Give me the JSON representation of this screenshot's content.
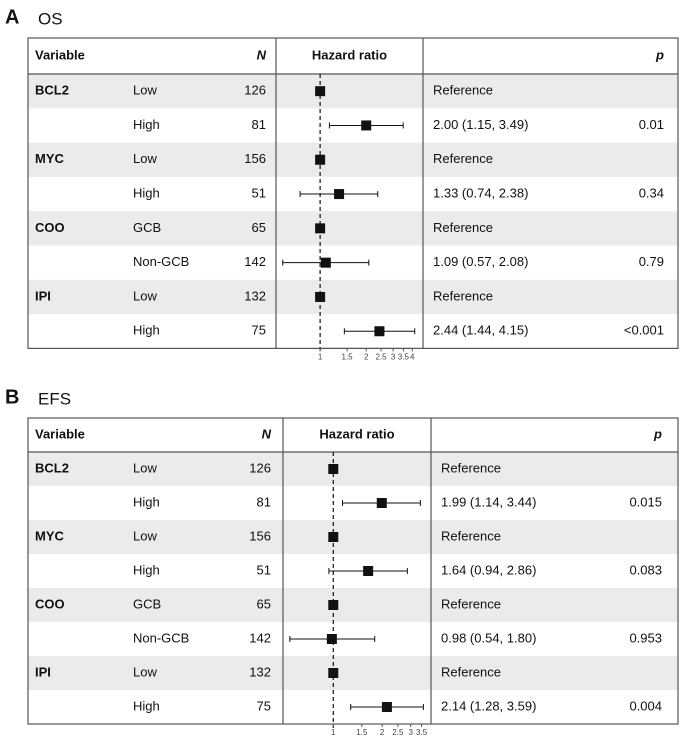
{
  "chart_data": [
    {
      "type": "forest",
      "panel": "A",
      "title": "OS",
      "columns": {
        "variable": "Variable",
        "n": "N",
        "hr": "Hazard ratio",
        "p": "p"
      },
      "variables": [
        "BCL2",
        null,
        "MYC",
        null,
        "COO",
        null,
        "IPI",
        null
      ],
      "categories": [
        "Low",
        "High",
        "Low",
        "High",
        "GCB",
        "Non-GCB",
        "Low",
        "High"
      ],
      "n": [
        126,
        81,
        156,
        51,
        65,
        142,
        132,
        75
      ],
      "values": [
        1,
        2.0,
        1,
        1.33,
        1,
        1.09,
        1,
        2.44
      ],
      "lower": [
        null,
        1.15,
        null,
        0.74,
        null,
        0.57,
        null,
        1.44
      ],
      "upper": [
        null,
        3.49,
        null,
        2.38,
        null,
        2.08,
        null,
        4.15
      ],
      "value_labels": [
        "Reference",
        "2.00 (1.15, 3.49)",
        "Reference",
        "1.33 (0.74, 2.38)",
        "Reference",
        "1.09 (0.57, 2.08)",
        "Reference",
        "2.44 (1.44, 4.15)"
      ],
      "p": [
        null,
        "0.01",
        null,
        "0.34",
        null,
        "0.79",
        null,
        "<0.001"
      ],
      "xlim": [
        0.515,
        4.7
      ],
      "xticks": [
        1,
        1.5,
        2,
        2.5,
        3,
        3.5,
        4
      ],
      "log_scale": true,
      "reference_line": 1,
      "color": "#111111"
    },
    {
      "type": "forest",
      "panel": "B",
      "title": "EFS",
      "columns": {
        "variable": "Variable",
        "n": "N",
        "hr": "Hazard ratio",
        "p": "p"
      },
      "variables": [
        "BCL2",
        null,
        "MYC",
        null,
        "COO",
        null,
        "IPI",
        null
      ],
      "categories": [
        "Low",
        "High",
        "Low",
        "High",
        "GCB",
        "Non-GCB",
        "Low",
        "High"
      ],
      "n": [
        126,
        81,
        156,
        51,
        65,
        142,
        132,
        75
      ],
      "values": [
        1,
        1.99,
        1,
        1.64,
        1,
        0.98,
        1,
        2.14
      ],
      "lower": [
        null,
        1.14,
        null,
        0.94,
        null,
        0.54,
        null,
        1.28
      ],
      "upper": [
        null,
        3.44,
        null,
        2.86,
        null,
        1.8,
        null,
        3.59
      ],
      "value_labels": [
        "Reference",
        "1.99 (1.14, 3.44)",
        "Reference",
        "1.64 (0.94, 2.86)",
        "Reference",
        "0.98 (0.54, 1.80)",
        "Reference",
        "2.14 (1.28, 3.59)"
      ],
      "p": [
        null,
        "0.015",
        null,
        "0.083",
        null,
        "0.953",
        null,
        "0.004"
      ],
      "xlim": [
        0.49,
        4.0
      ],
      "xticks": [
        1,
        1.5,
        2,
        2.5,
        3,
        3.5
      ],
      "log_scale": true,
      "reference_line": 1,
      "color": "#111111"
    }
  ]
}
